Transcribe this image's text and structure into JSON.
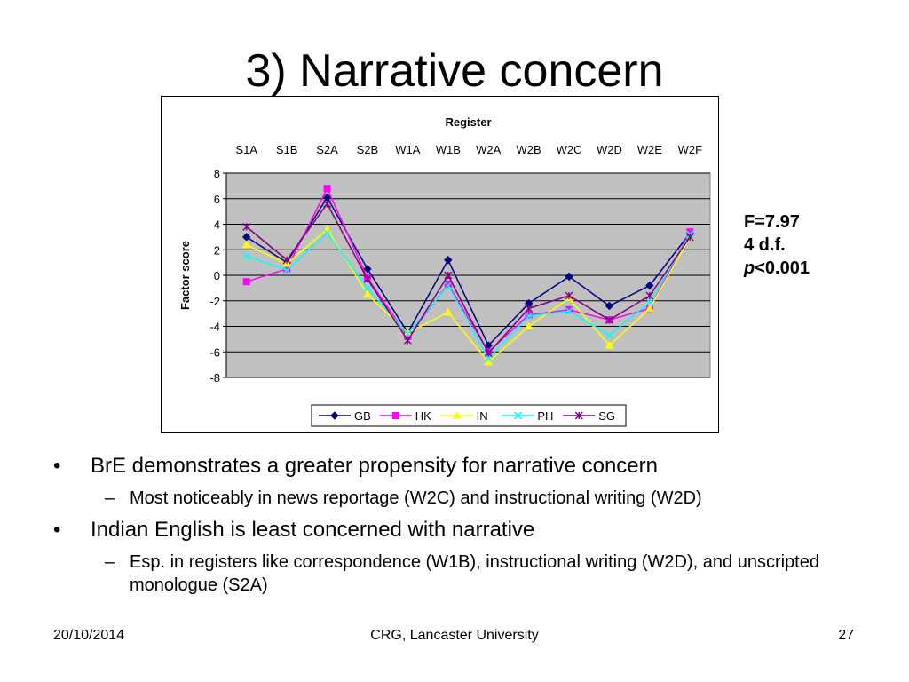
{
  "slide": {
    "title": "3) Narrative concern",
    "stats": {
      "f": "F=7.97",
      "df": "4 d.f.",
      "p_italic": "p",
      "p_rest": "<0.001"
    },
    "bullets": [
      {
        "text": "BrE demonstrates a greater propensity for narrative concern",
        "sub": "Most noticeably in news reportage (W2C) and instructional writing (W2D)"
      },
      {
        "text": "Indian English is least concerned with narrative",
        "sub": "Esp. in registers like correspondence (W1B), instructional writing (W2D), and unscripted monologue (S2A)"
      }
    ],
    "footer": {
      "date": "20/10/2014",
      "center": "CRG, Lancaster University",
      "page": "27"
    }
  },
  "chart_data": {
    "type": "line",
    "title": "Register",
    "ylabel": "Factor score",
    "categories": [
      "S1A",
      "S1B",
      "S2A",
      "S2B",
      "W1A",
      "W1B",
      "W2A",
      "W2B",
      "W2C",
      "W2D",
      "W2E",
      "W2F"
    ],
    "x_axis_position": "top",
    "ylim": [
      -8,
      8
    ],
    "yticks": [
      8,
      6,
      4,
      2,
      0,
      -2,
      -4,
      -6,
      -8
    ],
    "grid": true,
    "plot_background": "#c0c0c0",
    "legend_position": "bottom",
    "series": [
      {
        "name": "GB",
        "color": "#000080",
        "marker": "diamond",
        "values": [
          3.0,
          1.0,
          6.1,
          0.5,
          -4.5,
          1.2,
          -5.5,
          -2.2,
          -0.1,
          -2.4,
          -0.8,
          3.3
        ]
      },
      {
        "name": "HK",
        "color": "#ff00ff",
        "marker": "square",
        "values": [
          -0.5,
          0.5,
          6.8,
          -0.2,
          -4.8,
          -0.7,
          -6.0,
          -3.1,
          -2.7,
          -3.5,
          -2.6,
          3.4
        ]
      },
      {
        "name": "IN",
        "color": "#ffff00",
        "marker": "triangle",
        "values": [
          2.4,
          0.9,
          3.6,
          -1.5,
          -4.5,
          -2.9,
          -6.8,
          -4.0,
          -1.8,
          -5.5,
          -2.6,
          3.0
        ]
      },
      {
        "name": "PH",
        "color": "#00ffff",
        "marker": "x",
        "values": [
          1.5,
          0.4,
          3.3,
          -1.0,
          -4.6,
          -0.8,
          -6.5,
          -3.2,
          -2.8,
          -4.7,
          -2.1,
          3.2
        ]
      },
      {
        "name": "SG",
        "color": "#800080",
        "marker": "star",
        "values": [
          3.8,
          1.2,
          5.6,
          -0.3,
          -5.1,
          0.0,
          -6.1,
          -2.6,
          -1.6,
          -3.5,
          -1.6,
          3.0
        ]
      }
    ]
  }
}
